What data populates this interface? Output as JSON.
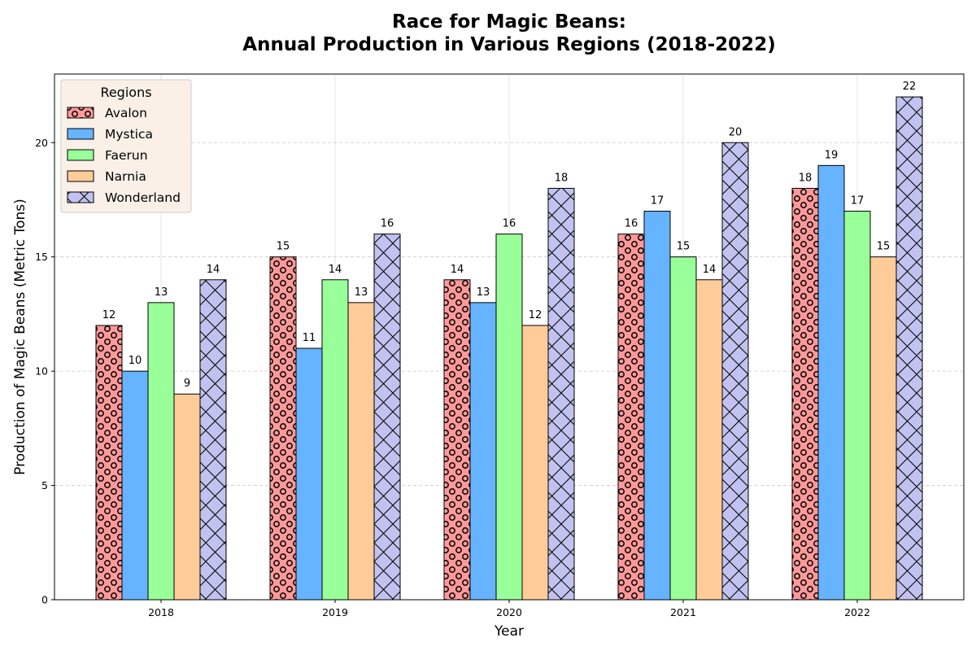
{
  "chart_data": {
    "type": "bar",
    "title_line1": "Race for Magic Beans:",
    "title_line2": "Annual Production in Various Regions (2018-2022)",
    "xlabel": "Year",
    "ylabel": "Production of Magic Beans (Metric Tons)",
    "categories": [
      "2018",
      "2019",
      "2020",
      "2021",
      "2022"
    ],
    "ylim": [
      0,
      23
    ],
    "yticks": [
      0,
      5,
      10,
      15,
      20
    ],
    "grid": true,
    "legend": {
      "title": "Regions",
      "placement": "top-left"
    },
    "series": [
      {
        "name": "Avalon",
        "values": [
          12,
          15,
          14,
          16,
          18
        ],
        "color": "#ff9999",
        "pattern": "circles"
      },
      {
        "name": "Mystica",
        "values": [
          10,
          11,
          13,
          17,
          19
        ],
        "color": "#66b3ff",
        "pattern": "none"
      },
      {
        "name": "Faerun",
        "values": [
          13,
          14,
          16,
          15,
          17
        ],
        "color": "#99ff99",
        "pattern": "none"
      },
      {
        "name": "Narnia",
        "values": [
          9,
          13,
          12,
          14,
          15
        ],
        "color": "#ffcc99",
        "pattern": "none"
      },
      {
        "name": "Wonderland",
        "values": [
          14,
          16,
          18,
          20,
          22
        ],
        "color": "#c2c2f0",
        "pattern": "crosshatch"
      }
    ]
  }
}
